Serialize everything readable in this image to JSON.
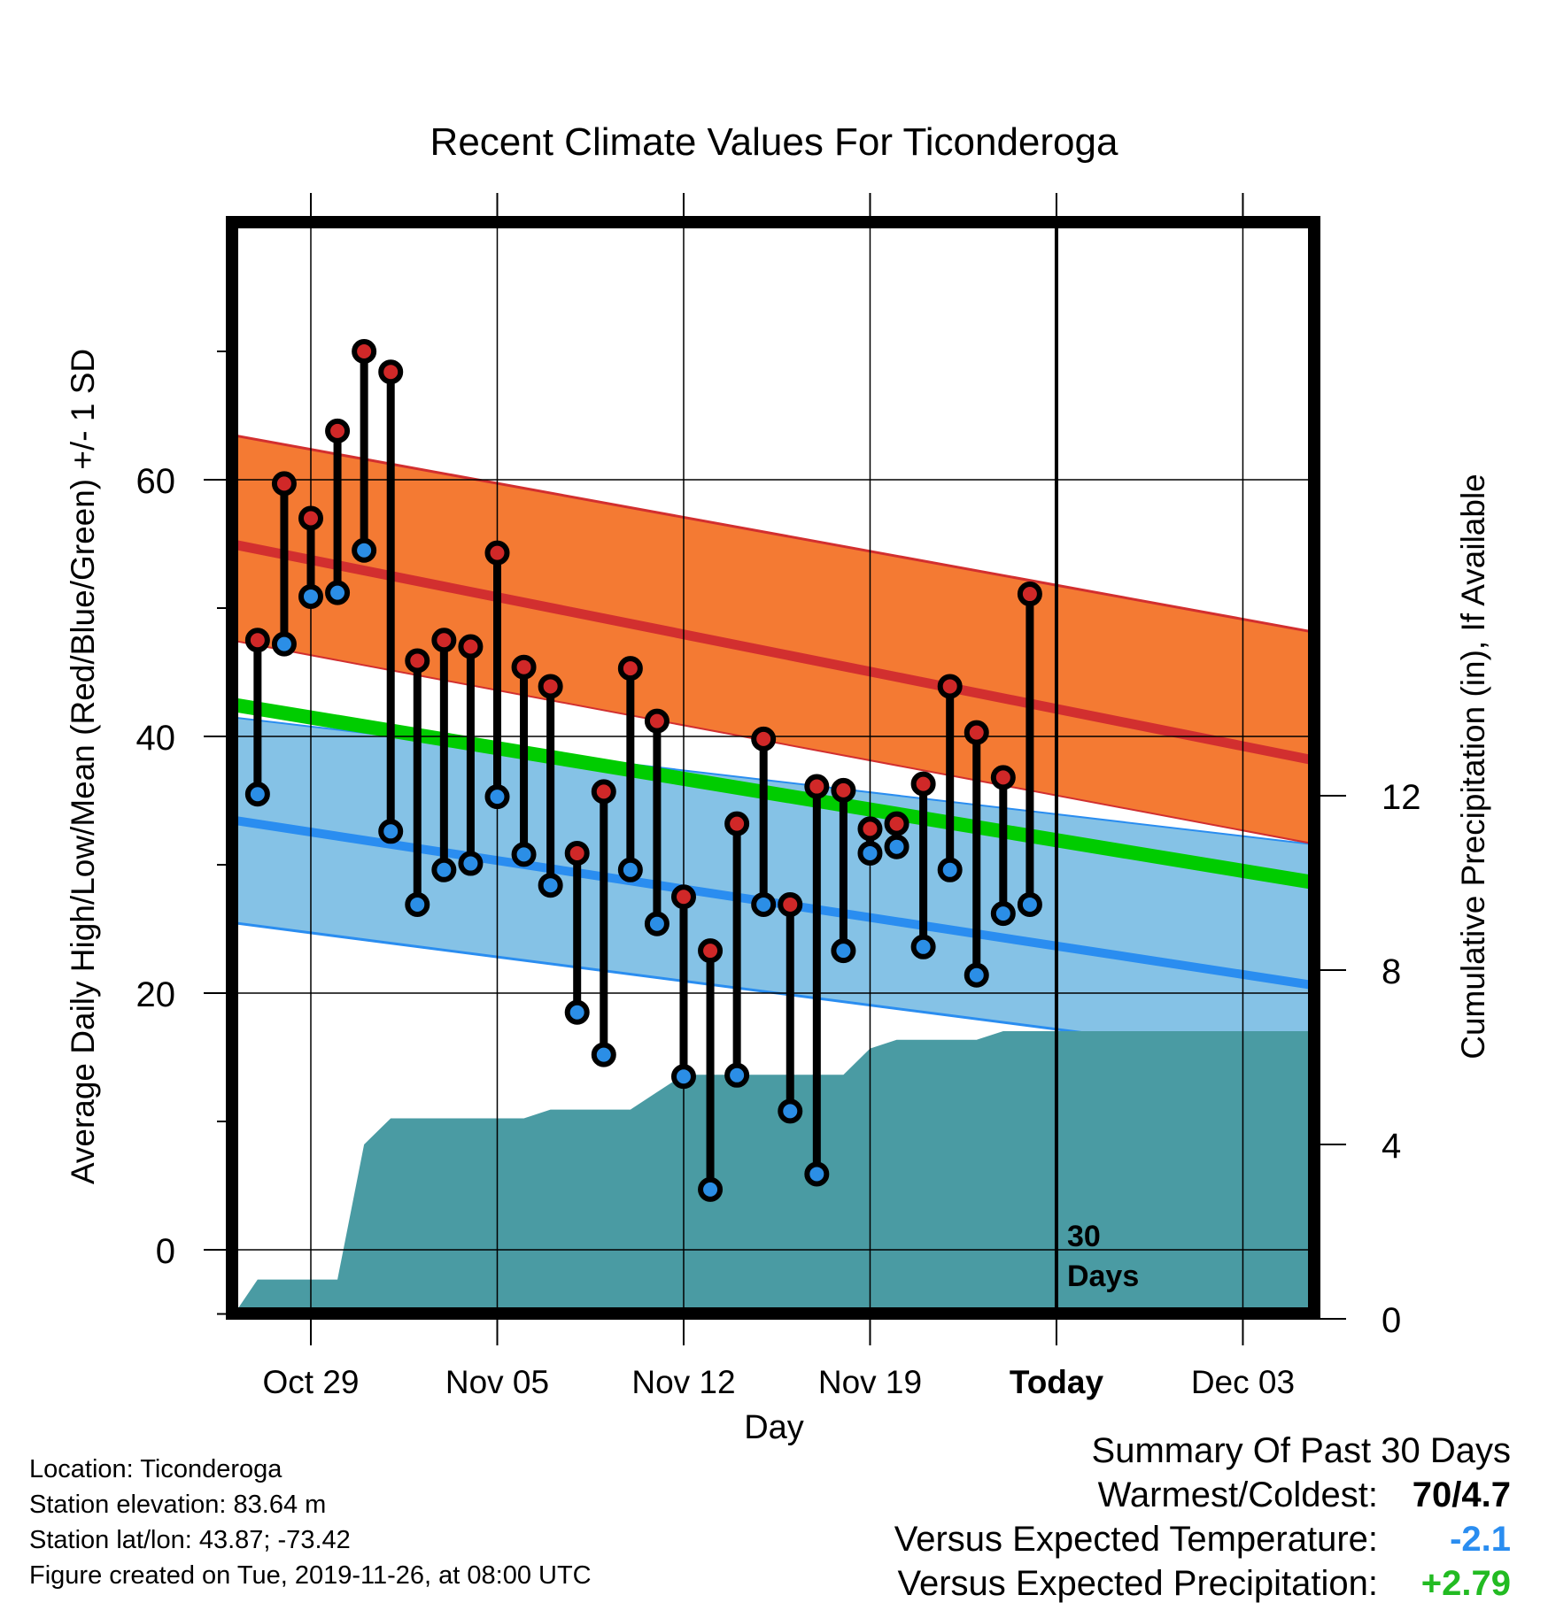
{
  "chart_data": {
    "type": "line",
    "title": "Recent Climate Values For Ticonderoga",
    "xlabel": "Day",
    "ylabel": "Average Daily High/Low/Mean (Red/Blue/Green) +/- 1 SD",
    "y2label": "Cumulative Precipitation (in), If Available",
    "x_range": [
      "2019-10-26",
      "2019-12-06"
    ],
    "ylim": [
      -7,
      80
    ],
    "y2lim": [
      0,
      24
    ],
    "yticks": [
      "0",
      "20",
      "40",
      "60"
    ],
    "y2ticks": [
      "0",
      "4",
      "8",
      "12"
    ],
    "x_ticks": [
      {
        "date": "2019-10-29",
        "label": "Oct 29"
      },
      {
        "date": "2019-11-05",
        "label": "Nov 05"
      },
      {
        "date": "2019-11-12",
        "label": "Nov 12"
      },
      {
        "date": "2019-11-19",
        "label": "Nov 19"
      },
      {
        "date": "2019-11-26",
        "label": "Today"
      },
      {
        "date": "2019-12-03",
        "label": "Dec 03"
      }
    ],
    "today_marker": {
      "date": "2019-11-26",
      "label_line1": "30",
      "label_line2": "Days"
    },
    "grid": true,
    "colors": {
      "high_band": "#f47a33",
      "high_line": "#d22f2f",
      "low_band": "#85c2e6",
      "low_line": "#2a8df0",
      "mean_line": "#00cc00",
      "overlap": "#931a1e",
      "precip": "#4a9ba3",
      "high_marker": "#d02828",
      "low_marker": "#2b8ee6"
    },
    "normals": {
      "x": [
        "2019-10-26",
        "2019-12-06"
      ],
      "high_mean": [
        55,
        38
      ],
      "high_plus_sd": [
        63.5,
        48
      ],
      "high_minus_sd": [
        47.5,
        31.5
      ],
      "low_mean": [
        33.5,
        20.5
      ],
      "low_plus_sd": [
        41.5,
        31.5
      ],
      "low_minus_sd": [
        25.5,
        14.5
      ],
      "mean": [
        42.5,
        28.5
      ]
    },
    "series": [
      {
        "name": "High",
        "x": [
          "2019-10-27",
          "2019-10-28",
          "2019-10-29",
          "2019-10-30",
          "2019-10-31",
          "2019-11-01",
          "2019-11-02",
          "2019-11-03",
          "2019-11-04",
          "2019-11-05",
          "2019-11-06",
          "2019-11-07",
          "2019-11-08",
          "2019-11-09",
          "2019-11-10",
          "2019-11-11",
          "2019-11-12",
          "2019-11-13",
          "2019-11-14",
          "2019-11-15",
          "2019-11-16",
          "2019-11-17",
          "2019-11-18",
          "2019-11-19",
          "2019-11-20",
          "2019-11-21",
          "2019-11-22",
          "2019-11-23",
          "2019-11-24",
          "2019-11-25"
        ],
        "values": [
          47.5,
          59.7,
          57,
          63.8,
          70,
          68.4,
          45.9,
          47.5,
          47,
          54.3,
          45.4,
          43.9,
          30.9,
          35.7,
          45.3,
          41.2,
          27.5,
          23.3,
          33.2,
          39.8,
          26.9,
          36.1,
          35.8,
          32.8,
          33.2,
          36.3,
          43.9,
          40.3,
          36.8,
          51.1
        ]
      },
      {
        "name": "Low",
        "x": [
          "2019-10-27",
          "2019-10-28",
          "2019-10-29",
          "2019-10-30",
          "2019-10-31",
          "2019-11-01",
          "2019-11-02",
          "2019-11-03",
          "2019-11-04",
          "2019-11-05",
          "2019-11-06",
          "2019-11-07",
          "2019-11-08",
          "2019-11-09",
          "2019-11-10",
          "2019-11-11",
          "2019-11-12",
          "2019-11-13",
          "2019-11-14",
          "2019-11-15",
          "2019-11-16",
          "2019-11-17",
          "2019-11-18",
          "2019-11-19",
          "2019-11-20",
          "2019-11-21",
          "2019-11-22",
          "2019-11-23",
          "2019-11-24",
          "2019-11-25"
        ],
        "values": [
          35.5,
          47.2,
          50.9,
          51.2,
          54.5,
          32.6,
          26.9,
          29.6,
          30.1,
          35.3,
          30.8,
          28.4,
          18.5,
          15.2,
          29.6,
          25.4,
          13.5,
          4.7,
          13.6,
          26.9,
          10.8,
          5.9,
          23.3,
          30.9,
          31.4,
          23.6,
          29.6,
          21.4,
          26.2,
          26.9
        ]
      },
      {
        "name": "Cumulative Precipitation",
        "x": [
          "2019-10-26",
          "2019-10-27",
          "2019-10-28",
          "2019-10-29",
          "2019-10-30",
          "2019-10-31",
          "2019-11-01",
          "2019-11-02",
          "2019-11-03",
          "2019-11-04",
          "2019-11-05",
          "2019-11-06",
          "2019-11-07",
          "2019-11-08",
          "2019-11-09",
          "2019-11-10",
          "2019-11-11",
          "2019-11-12",
          "2019-11-13",
          "2019-11-14",
          "2019-11-15",
          "2019-11-16",
          "2019-11-17",
          "2019-11-18",
          "2019-11-19",
          "2019-11-20",
          "2019-11-21",
          "2019-11-22",
          "2019-11-23",
          "2019-11-24",
          "2019-11-25",
          "2019-12-06"
        ],
        "values": [
          0,
          0.9,
          0.9,
          0.9,
          0.9,
          4.0,
          4.6,
          4.6,
          4.6,
          4.6,
          4.6,
          4.6,
          4.8,
          4.8,
          4.8,
          4.8,
          5.2,
          5.6,
          5.6,
          5.6,
          5.6,
          5.6,
          5.6,
          5.6,
          6.2,
          6.4,
          6.4,
          6.4,
          6.4,
          6.6,
          6.6,
          6.6
        ]
      }
    ]
  },
  "footer": {
    "location": "Location: Ticonderoga",
    "elevation": "Station elevation: 83.64 m",
    "latlon": "Station lat/lon: 43.87; -73.42",
    "created": "Figure created on Tue, 2019-11-26, at 08:00 UTC"
  },
  "summary": {
    "heading": "Summary Of Past 30 Days",
    "warmest_label": "Warmest/Coldest:",
    "warmest_value": "70/4.7",
    "temp_label": "Versus Expected Temperature:",
    "temp_value": "-2.1",
    "temp_color": "#2a8df0",
    "precip_label": "Versus Expected Precipitation:",
    "precip_value": "+2.79",
    "precip_color": "#22bb22"
  }
}
